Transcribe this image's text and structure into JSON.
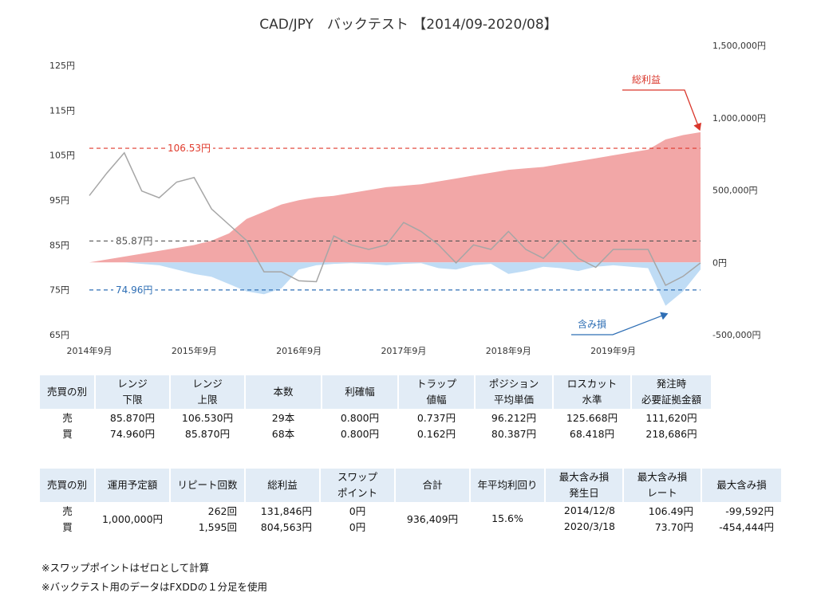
{
  "chart_data": {
    "type": "line",
    "title": "CAD/JPY　バックテスト 【2014/09-2020/08】",
    "x": [
      "2014/09",
      "2014/11",
      "2015/01",
      "2015/03",
      "2015/05",
      "2015/07",
      "2015/09",
      "2015/11",
      "2016/01",
      "2016/03",
      "2016/05",
      "2016/07",
      "2016/09",
      "2016/11",
      "2017/01",
      "2017/03",
      "2017/05",
      "2017/07",
      "2017/09",
      "2017/11",
      "2018/01",
      "2018/03",
      "2018/05",
      "2018/07",
      "2018/09",
      "2018/11",
      "2019/01",
      "2019/03",
      "2019/05",
      "2019/07",
      "2019/09",
      "2019/11",
      "2020/01",
      "2020/03",
      "2020/05",
      "2020/08"
    ],
    "x_tick_labels": [
      "2014年9月",
      "2015年9月",
      "2016年9月",
      "2017年9月",
      "2018年9月",
      "2019年9月"
    ],
    "y_left": {
      "ticks": [
        "125円",
        "115円",
        "105円",
        "95円",
        "85円",
        "75円",
        "65円"
      ],
      "range": [
        65,
        125
      ]
    },
    "y_right": {
      "ticks": [
        "1,500,000円",
        "1,000,000円",
        "500,000円",
        "0円",
        "-500,000円"
      ],
      "range": [
        -500000,
        1500000
      ]
    },
    "series": [
      {
        "name": "",
        "axis": "left",
        "color": "#a6a6a6",
        "values": [
          96,
          101,
          105.5,
          97,
          95.5,
          99,
          100,
          93,
          89.5,
          86,
          79,
          79,
          77,
          76.8,
          87,
          85,
          84,
          85,
          90,
          88,
          85,
          81,
          85,
          84,
          88,
          84,
          82,
          86,
          82,
          80,
          84,
          84,
          84,
          76,
          78,
          81
        ]
      },
      {
        "name": "総利益",
        "axis": "right",
        "color": "#f2a7a7",
        "values": [
          0,
          20000,
          40000,
          60000,
          80000,
          100000,
          120000,
          150000,
          200000,
          300000,
          350000,
          400000,
          430000,
          450000,
          460000,
          480000,
          500000,
          520000,
          530000,
          540000,
          560000,
          580000,
          600000,
          620000,
          640000,
          650000,
          660000,
          680000,
          700000,
          720000,
          740000,
          760000,
          780000,
          850000,
          880000,
          900000
        ]
      },
      {
        "name": "含み損",
        "axis": "right",
        "color": "#bfdcf5",
        "values": [
          0,
          0,
          0,
          -10000,
          -20000,
          -50000,
          -80000,
          -100000,
          -150000,
          -200000,
          -220000,
          -180000,
          -50000,
          -20000,
          -10000,
          -5000,
          -10000,
          -20000,
          -10000,
          -5000,
          -40000,
          -50000,
          -20000,
          -10000,
          -80000,
          -60000,
          -30000,
          -40000,
          -60000,
          -30000,
          -20000,
          -30000,
          -40000,
          -300000,
          -200000,
          -50000
        ]
      }
    ],
    "reference_lines": [
      {
        "label": "106.53円",
        "value": 106.53,
        "color": "#e03a2c"
      },
      {
        "label": "85.87円",
        "value": 85.87,
        "color": "#555555"
      },
      {
        "label": "74.96円",
        "value": 74.96,
        "color": "#2f6fb5"
      }
    ],
    "annotations": [
      {
        "label": "総利益",
        "color": "#d9362b"
      },
      {
        "label": "含み損",
        "color": "#2f6fb5"
      }
    ],
    "grid": false,
    "legend": "none"
  },
  "table1": {
    "headers": [
      "売買の別",
      "レンジ\n下限",
      "レンジ\n上限",
      "本数",
      "利確幅",
      "トラップ\n値幅",
      "ポジション\n平均単価",
      "ロスカット\n水準",
      "発注時\n必要証拠金額"
    ],
    "rows": [
      [
        "売",
        "85.870円",
        "106.530円",
        "29本",
        "0.800円",
        "0.737円",
        "96.212円",
        "125.668円",
        "111,620円"
      ],
      [
        "買",
        "74.960円",
        "85.870円",
        "68本",
        "0.800円",
        "0.162円",
        "80.387円",
        "68.418円",
        "218,686円"
      ]
    ]
  },
  "table2": {
    "headers": [
      "売買の別",
      "運用予定額",
      "リピート回数",
      "総利益",
      "スワップ\nポイント",
      "合計",
      "年平均利回り",
      "最大含み損\n発生日",
      "最大含み損\nレート",
      "最大含み損"
    ],
    "side_sell": "売",
    "side_buy": "買",
    "budget": "1,000,000円",
    "total": "936,409円",
    "annual_yield": "15.6%",
    "sell": {
      "repeats": "262回",
      "profit": "131,846円",
      "swap": "0円",
      "date": "2014/12/8",
      "rate": "106.49円",
      "max_loss": "-99,592円"
    },
    "buy": {
      "repeats": "1,595回",
      "profit": "804,563円",
      "swap": "0円",
      "date": "2020/3/18",
      "rate": "73.70円",
      "max_loss": "-454,444円"
    }
  },
  "notes": [
    "※スワップポイントはゼロとして計算",
    "※バックテスト用のデータはFXDDの１分足を使用"
  ]
}
